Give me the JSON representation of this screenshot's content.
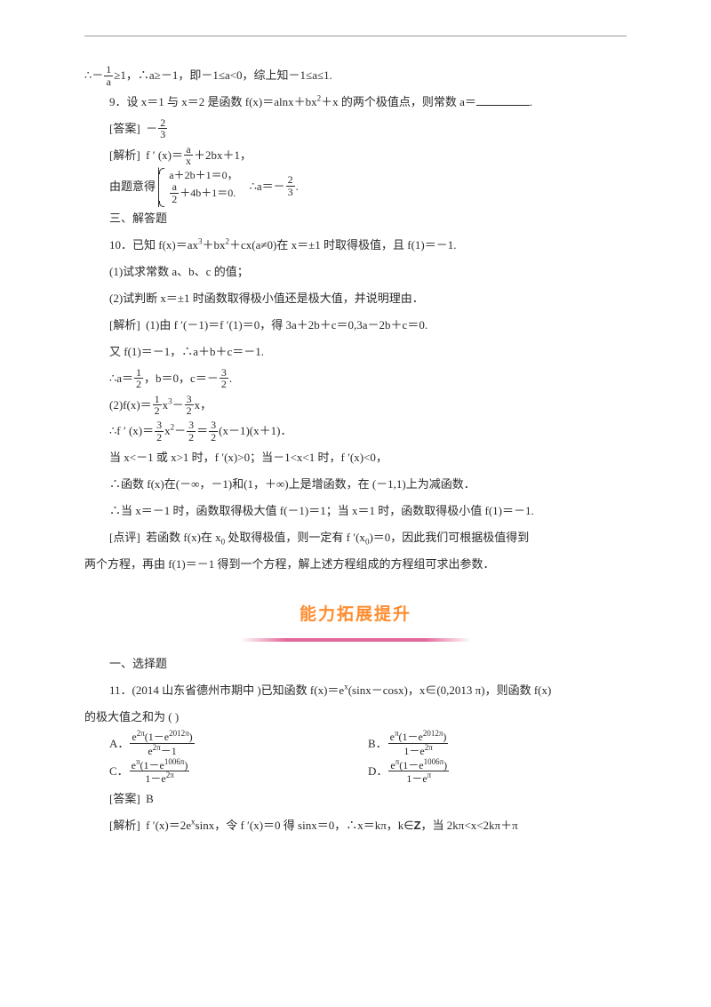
{
  "colors": {
    "text": "#2a2a2a",
    "rule": "#9a9a9a",
    "banner_text": "#ff8c2e",
    "banner_underline": "#e36798",
    "bg": "#ffffff"
  },
  "typography": {
    "body_size_pt": 10,
    "banner_size_pt": 14,
    "font": "SimSun"
  },
  "l1_a": "∴－",
  "l1_b": "≥1，∴a≥－1，即－1≤a<0，综上知－1≤a≤1.",
  "q9": "9．设 x＝1 与 x＝2 是函数  f(x)＝alnx＋bx",
  "q9_tail": "＋x 的两个极值点，则常数   a＝",
  "q9_end": ".",
  "ans_label": "[答案]",
  "ans9_pre": "－",
  "sol_label": "[解析]",
  "sol9_a": "f ′ (x)＝",
  "sol9_b": "＋2bx＋1，",
  "sys_lead": "由题意得",
  "sys_r1": "a＋2b＋1＝0，",
  "sys_r2_a": "＋4b＋1＝0.",
  "sys_tail_a": "∴a＝－",
  "sys_tail_b": ".",
  "sec3": "三、解答题",
  "q10": "10．已知 f(x)＝ax",
  "q10_b": "＋bx",
  "q10_c": "＋cx(a≠0)在 x＝±1 时取得极值，且   f(1)＝－1.",
  "q10_1": "(1)试求常数  a、b、c 的值；",
  "q10_2": "(2)试判断  x＝±1 时函数取得极小值还是极大值，并说明理由．",
  "sol10_1a": "(1)由 f ′(－1)＝f ′(1)＝0，得 3a＋2b＋c＝0,3a－2b＋c＝0.",
  "sol10_1b": "又 f(1)＝－1，∴a＋b＋c＝－1.",
  "sol10_1c_a": "∴a＝",
  "sol10_1c_b": "，b＝0，c＝－",
  "sol10_1c_c": ".",
  "sol10_2a_a": "(2)f(x)＝",
  "sol10_2a_b": "x",
  "sol10_2a_c": "－",
  "sol10_2a_d": "x，",
  "sol10_2b_a": "∴f ′ (x)＝",
  "sol10_2b_b": "x",
  "sol10_2b_c": "－",
  "sol10_2b_d": "＝",
  "sol10_2b_e": "(x－1)(x＋1)．",
  "sol10_2c": "当 x<－1 或 x>1 时，f ′(x)>0；当－1<x<1 时，f ′(x)<0，",
  "sol10_2d": "∴函数 f(x)在(－∞，－1)和(1，＋∞)上是增函数，在  (－1,1)上为减函数．",
  "sol10_2e": "∴当 x＝－1 时，函数取得极大值   f(－1)＝1；当 x＝1 时，函数取得极小值   f(1)＝－1.",
  "review_label": "[点评]",
  "review_a": "若函数  f(x)在 x",
  "review_b": " 处取得极值，则一定有    f ′(x",
  "review_c": ")＝0，因此我们可根据极值得到",
  "review_2": "两个方程，再由   f(1)＝－1 得到一个方程，解上述方程组成的方程组可求出参数．",
  "banner": "能力拓展提升",
  "sec1": "一、选择题",
  "q11_a": "11．(2014 山东省德州市期中   )已知函数   f(x)＝e",
  "q11_b": "(sinx－cosx)，x∈(0,2013 π)，则函数  f(x)",
  "q11_c": "的极大值之和为  (      )",
  "optA": "A．",
  "optB": "B．",
  "optC": "C．",
  "optD": "D．",
  "e2pi_num_a": "e",
  "e2pi_num_b": "(1－e",
  "e2pi_num_c": ")",
  "exp_2pi": "2π",
  "exp_2012pi": "2012π",
  "exp_pi": "π",
  "exp_1006pi": "1006π",
  "denA": "e",
  "denA_b": "－1",
  "denB_a": "1－e",
  "ans11": "B",
  "sol11_a": "f ′(x)＝2e",
  "sol11_b": "sinx，令 f ′(x)＝0 得 sinx＝0，∴x＝kπ，k∈",
  "sol11_c": "，当  2kπ<x<2kπ＋π",
  "frac_1_a": "1",
  "frac_a": "a",
  "frac_2_3_n": "2",
  "frac_2_3_d": "3",
  "frac_a_x_n": "a",
  "frac_a_x_d": "x",
  "frac_a_2_n": "a",
  "frac_a_2_d": "2",
  "frac_1_2_n": "1",
  "frac_1_2_d": "2",
  "frac_3_2_n": "3",
  "frac_3_2_d": "2",
  "zero": "0",
  "x_sym": "x",
  "Z": "Z"
}
